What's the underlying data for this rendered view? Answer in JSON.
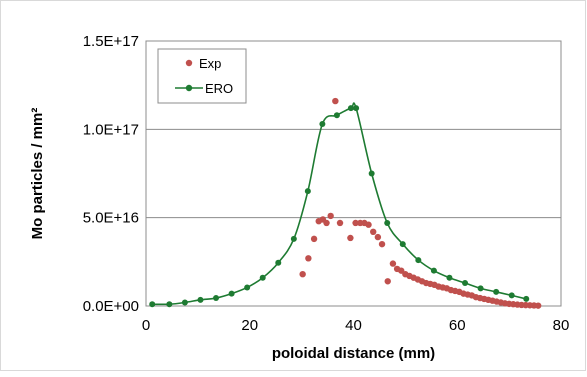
{
  "chart_data": {
    "type": "scatter",
    "xlabel": "poloidal distance (mm)",
    "ylabel": "Mo particles / mm²",
    "xlim": [
      0,
      80
    ],
    "ylim": [
      0,
      1.5e+17
    ],
    "x_ticks": [
      0,
      20,
      40,
      60,
      80
    ],
    "x_tick_labels": [
      "0",
      "20",
      "40",
      "60",
      "80"
    ],
    "y_ticks": [
      0,
      5e+16,
      1e+17,
      1.5e+17
    ],
    "y_tick_labels": [
      "0.0E+00",
      "5.0E+16",
      "1.0E+17",
      "1.5E+17"
    ],
    "grid": "horizontal",
    "legend_position": "top-left",
    "series": [
      {
        "name": "Exp",
        "style": "markers",
        "color": "#c0504d",
        "x": [
          30.2,
          31.3,
          32.4,
          33.3,
          34.1,
          34.8,
          35.6,
          36.5,
          37.4,
          39.4,
          40.4,
          41.3,
          42.1,
          42.9,
          43.8,
          44.7,
          45.5,
          46.6,
          47.6,
          48.4,
          49.2,
          50.0,
          50.8,
          51.6,
          52.4,
          53.2,
          54.0,
          54.8,
          55.6,
          56.4,
          57.2,
          58.0,
          58.8,
          59.6,
          60.4,
          61.2,
          62.0,
          62.8,
          63.6,
          64.4,
          65.2,
          66.0,
          66.8,
          67.6,
          68.4,
          69.2,
          70.0,
          70.8,
          71.6,
          72.4,
          73.2,
          74.0,
          74.8,
          75.6
        ],
        "y": [
          1.8e+16,
          2.7e+16,
          3.8e+16,
          4.8e+16,
          4.9e+16,
          4.7e+16,
          5.1e+16,
          1.16e+17,
          4.7e+16,
          3.85e+16,
          4.7e+16,
          4.7e+16,
          4.7e+16,
          4.6e+16,
          4.2e+16,
          3.9e+16,
          3.5e+16,
          1.4e+16,
          2.4e+16,
          2.1e+16,
          2e+16,
          1.8e+16,
          1.7e+16,
          1.6e+16,
          1.5e+16,
          1.4e+16,
          1.3e+16,
          1.25e+16,
          1.2e+16,
          1.1e+16,
          1.05e+16,
          1e+16,
          9000000000000000.0,
          8500000000000000.0,
          8000000000000000.0,
          7000000000000000.0,
          6500000000000000.0,
          6000000000000000.0,
          5000000000000000.0,
          4500000000000000.0,
          4000000000000000.0,
          3500000000000000.0,
          3000000000000000.0,
          2500000000000000.0,
          2000000000000000.0,
          1500000000000000.0,
          1200000000000000.0,
          1000000000000000.0,
          800000000000000.0,
          600000000000000.0,
          500000000000000.0,
          400000000000000.0,
          300000000000000.0,
          200000000000000.0
        ]
      },
      {
        "name": "ERO",
        "style": "line-markers",
        "color": "#1e7b32",
        "x": [
          1.2,
          4.5,
          7.5,
          10.5,
          13.5,
          16.5,
          19.5,
          22.5,
          25.5,
          28.5,
          31.2,
          34.0,
          36.8,
          39.5,
          40.5,
          43.5,
          46.5,
          49.5,
          52.5,
          55.5,
          58.5,
          61.5,
          64.5,
          67.5,
          70.5,
          73.3
        ],
        "y": [
          1000000000000000.0,
          1000000000000000.0,
          2000000000000000.0,
          3500000000000000.0,
          4500000000000000.0,
          7000000000000000.0,
          1.05e+16,
          1.6e+16,
          2.45e+16,
          3.8e+16,
          6.5e+16,
          1.03e+17,
          1.08e+17,
          1.12e+17,
          1.12e+17,
          7.5e+16,
          4.7e+16,
          3.5e+16,
          2.6e+16,
          2e+16,
          1.6e+16,
          1.3e+16,
          1e+16,
          8000000000000000.0,
          6000000000000000.0,
          4000000000000000.0
        ]
      }
    ]
  }
}
